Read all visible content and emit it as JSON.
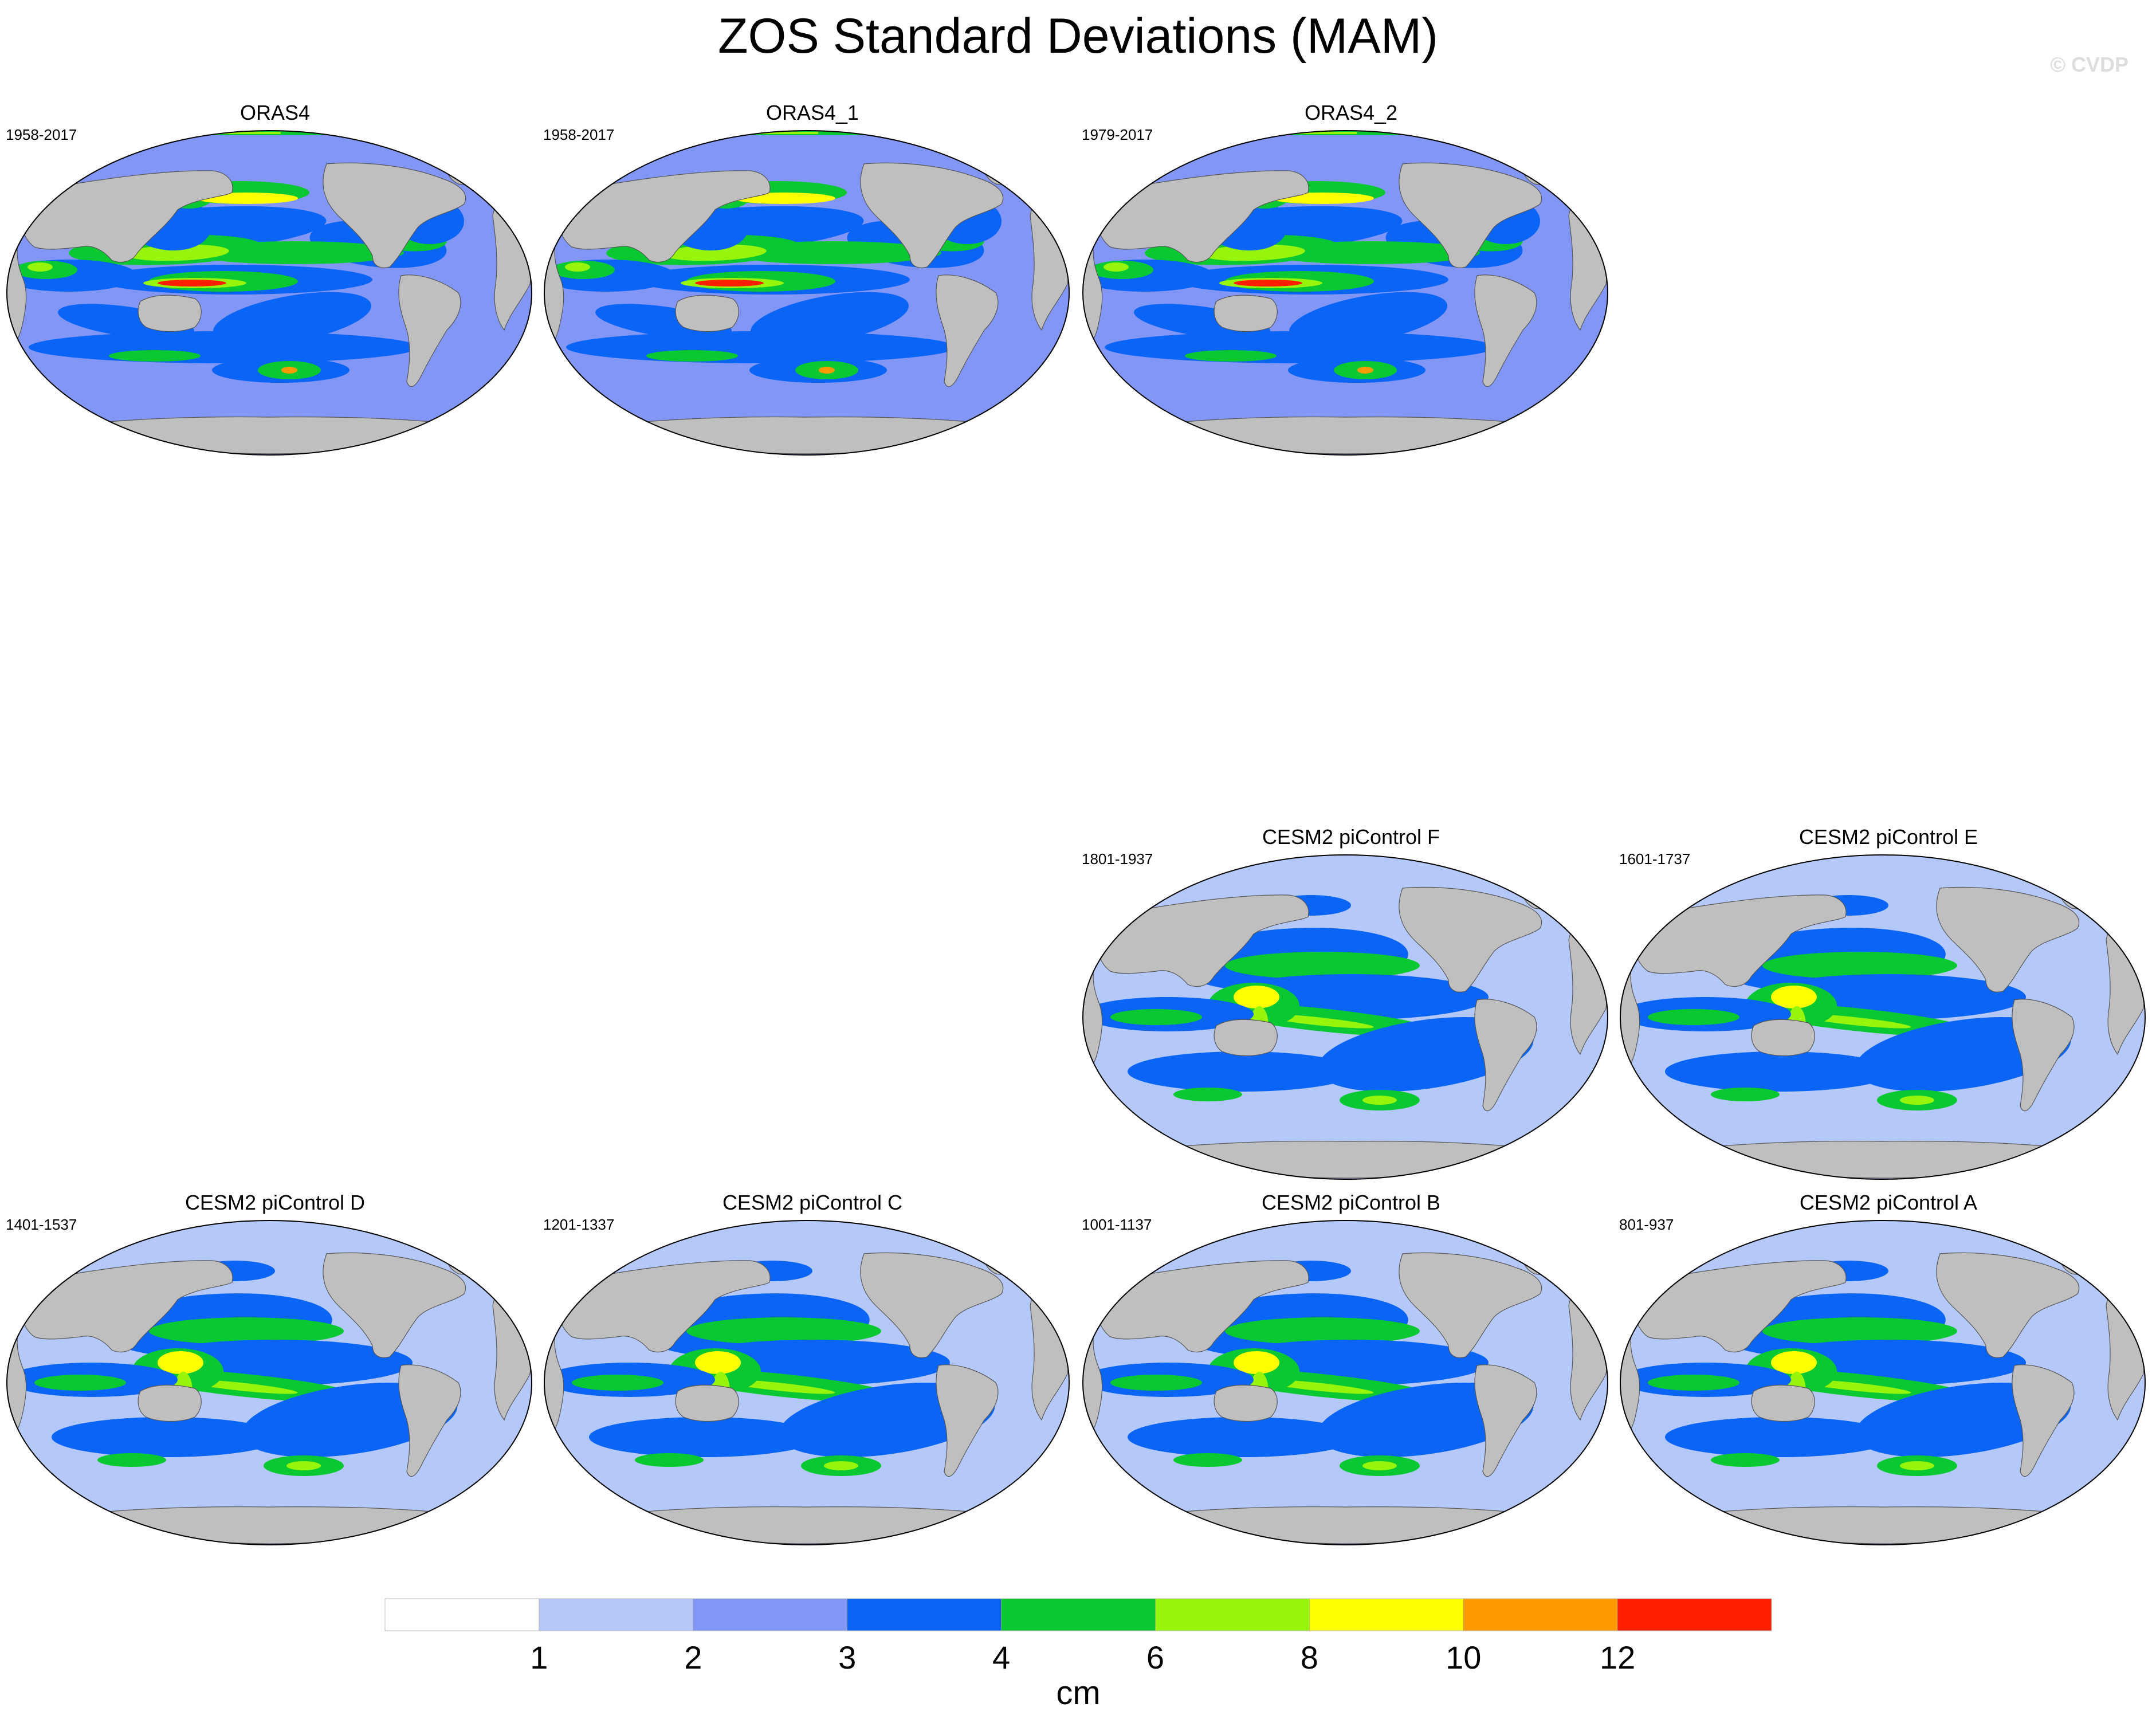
{
  "title": "ZOS Standard Deviations (MAM)",
  "watermark": "© CVDP",
  "land_color": "#bfbfbf",
  "chart_data": {
    "type": "heatmap",
    "projection": "Robinson (Pacific-centered)",
    "variable": "ZOS standard deviation",
    "season": "MAM",
    "panels": [
      {
        "id": "oras4",
        "title": "ORAS4",
        "years": "1958-2017"
      },
      {
        "id": "oras4-1",
        "title": "ORAS4_1",
        "years": "1958-2017"
      },
      {
        "id": "oras4-2",
        "title": "ORAS4_2",
        "years": "1979-2017"
      },
      {
        "id": "cesm2-f",
        "title": "CESM2 piControl F",
        "years": "1801-1937"
      },
      {
        "id": "cesm2-e",
        "title": "CESM2 piControl E",
        "years": "1601-1737"
      },
      {
        "id": "cesm2-d",
        "title": "CESM2 piControl D",
        "years": "1401-1537"
      },
      {
        "id": "cesm2-c",
        "title": "CESM2 piControl C",
        "years": "1201-1337"
      },
      {
        "id": "cesm2-b",
        "title": "CESM2 piControl B",
        "years": "1001-1137"
      },
      {
        "id": "cesm2-a",
        "title": "CESM2 piControl A",
        "years": "801-937"
      }
    ],
    "colorbar": {
      "levels": [
        1,
        2,
        3,
        4,
        6,
        8,
        10,
        12
      ],
      "tick_labels": [
        "1",
        "2",
        "3",
        "4",
        "6",
        "8",
        "10",
        "12"
      ],
      "colors": [
        "#ffffff",
        "#b4c8fa",
        "#8296f5",
        "#0a64f5",
        "#0ac832",
        "#96f50a",
        "#ffff00",
        "#ff9b00",
        "#ff1e00"
      ],
      "label": "cm"
    }
  }
}
